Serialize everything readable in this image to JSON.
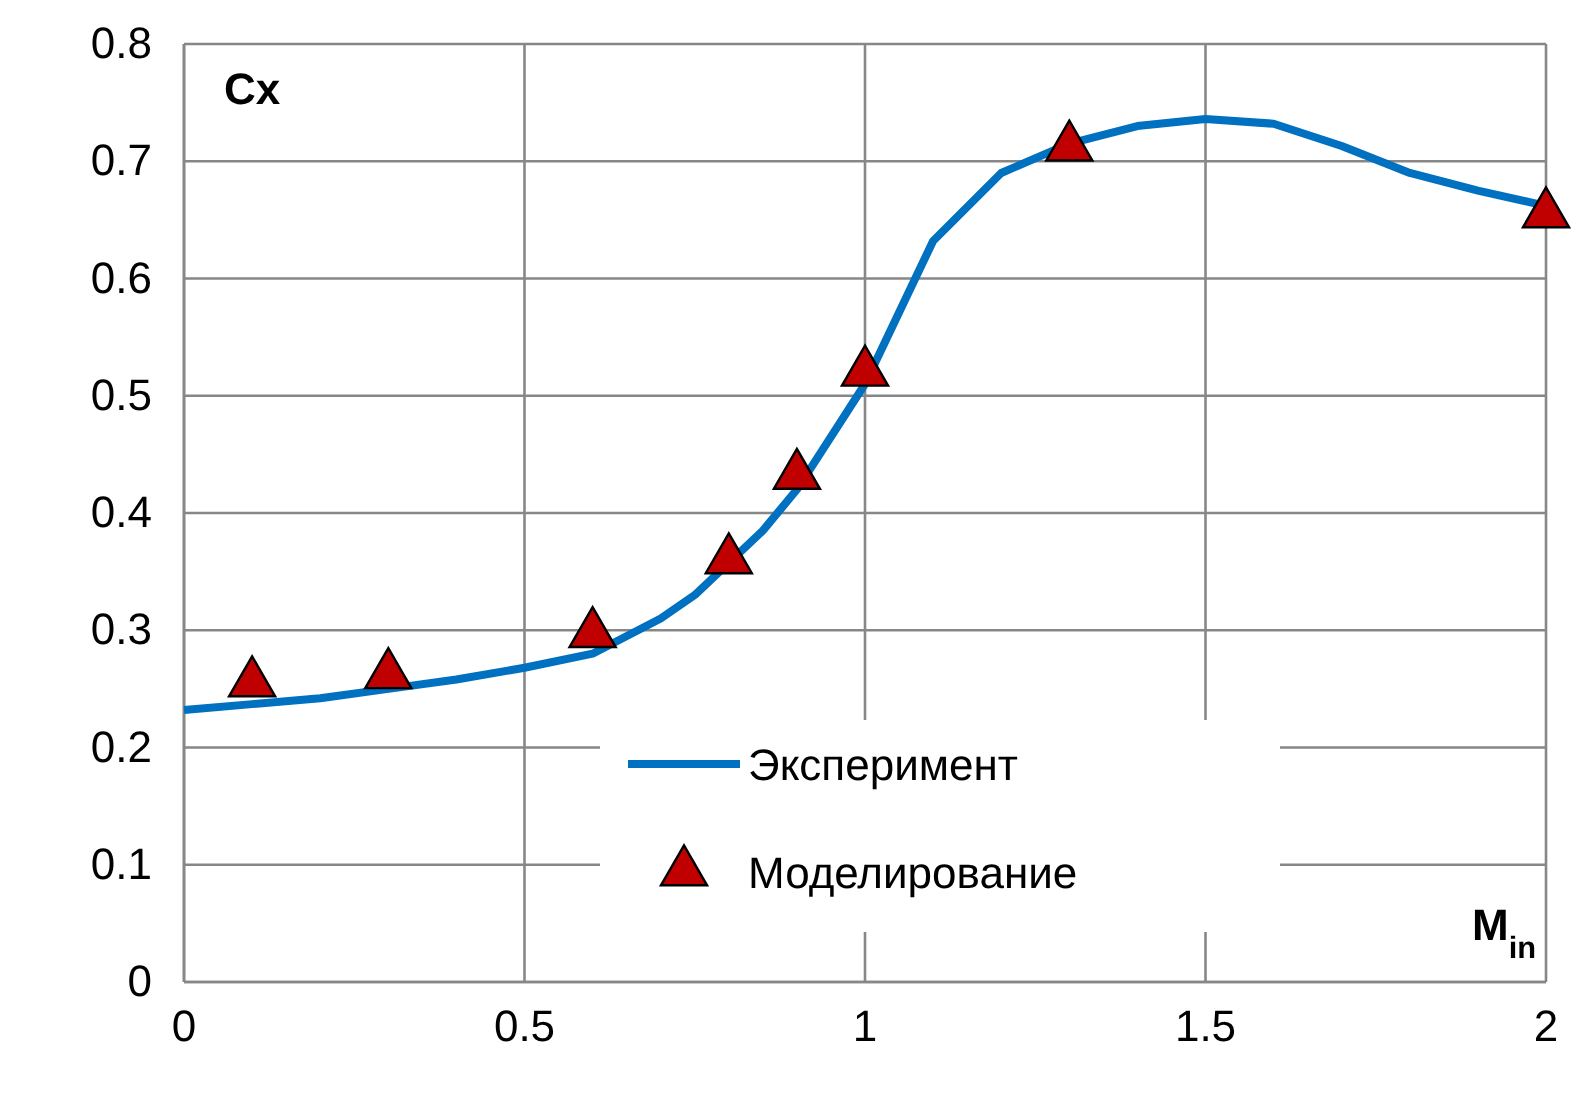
{
  "chart_data": {
    "type": "line",
    "xlabel": "M$_{in}$",
    "ylabel": "Cx",
    "xlim": [
      0,
      2
    ],
    "xticks": [
      0,
      0.5,
      1,
      1.5,
      2
    ],
    "ylim": [
      0,
      0.8
    ],
    "yticks": [
      0,
      0.1,
      0.2,
      0.3,
      0.4,
      0.5,
      0.6,
      0.7,
      0.8
    ],
    "grid": true,
    "legend": "bottom right",
    "series": [
      {
        "name": "Эксперимент",
        "color": "#0070c0",
        "marker": "none",
        "line_style": "solid",
        "x": [
          0,
          0.1,
          0.2,
          0.3,
          0.4,
          0.5,
          0.6,
          0.7,
          0.75,
          0.85,
          0.9,
          1,
          1.1,
          1.2,
          1.3,
          1.4,
          1.5,
          1.6,
          1.7,
          1.8,
          1.9,
          2
        ],
        "values": [
          0.232,
          0.237,
          0.242,
          0.25,
          0.258,
          0.268,
          0.28,
          0.31,
          0.33,
          0.385,
          0.42,
          0.51,
          0.632,
          0.69,
          0.715,
          0.73,
          0.736,
          0.732,
          0.713,
          0.69,
          0.675,
          0.662
        ]
      },
      {
        "name": "Моделирование",
        "type": "scatter",
        "color": "#c00000",
        "marker": "triangle",
        "x": [
          0.1,
          0.3,
          0.6,
          0.8,
          0.9,
          1,
          1.3,
          2
        ],
        "values": [
          0.255,
          0.262,
          0.297,
          0.36,
          0.432,
          0.52,
          0.712,
          0.655
        ]
      }
    ]
  }
}
